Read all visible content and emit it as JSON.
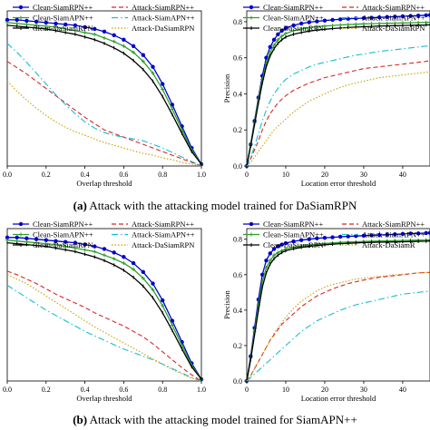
{
  "figure": {
    "captions": [
      {
        "tag": "(a)",
        "text": "Attack with the attacking model trained for DaSiamRPN"
      },
      {
        "tag": "(b)",
        "text": "Attack with the attacking model trained for SiamAPN++"
      }
    ]
  },
  "chart_data": [
    {
      "id": "a-success",
      "type": "line",
      "xlabel": "Overlap threshold",
      "ylabel": "",
      "xlim": [
        0,
        1
      ],
      "ylim": [
        0,
        0.86
      ],
      "xticks": [
        "0.0",
        "0.2",
        "0.4",
        "0.6",
        "0.8",
        "1.0"
      ],
      "yticks": [],
      "grid": false,
      "legend": {
        "placement": "top",
        "entries": [
          "Clean-SiamRPN++",
          "Attack-SiamRPN++",
          "Clean-SiamAPN++",
          "Attack-SiamAPN++",
          "Clean-DaSiamRPN",
          "Attack-DaSiamRPN"
        ]
      },
      "x": [
        0,
        0.05,
        0.1,
        0.15,
        0.2,
        0.25,
        0.3,
        0.35,
        0.4,
        0.45,
        0.5,
        0.55,
        0.6,
        0.65,
        0.7,
        0.75,
        0.8,
        0.85,
        0.9,
        0.95,
        1.0
      ],
      "series": [
        {
          "name": "Clean-SiamRPN++",
          "color": "#0000cc",
          "style": "solid-circle",
          "values": [
            0.81,
            0.81,
            0.805,
            0.8,
            0.795,
            0.79,
            0.785,
            0.78,
            0.77,
            0.76,
            0.745,
            0.725,
            0.7,
            0.665,
            0.615,
            0.55,
            0.455,
            0.34,
            0.22,
            0.1,
            0.01
          ]
        },
        {
          "name": "Attack-SiamRPN++",
          "color": "#d62728",
          "style": "dashed",
          "values": [
            0.58,
            0.545,
            0.51,
            0.47,
            0.43,
            0.39,
            0.35,
            0.31,
            0.27,
            0.235,
            0.2,
            0.18,
            0.16,
            0.14,
            0.12,
            0.1,
            0.08,
            0.06,
            0.04,
            0.02,
            0.0
          ]
        },
        {
          "name": "Clean-SiamAPN++",
          "color": "#2ca02c",
          "style": "solid-plus",
          "values": [
            0.795,
            0.79,
            0.785,
            0.78,
            0.775,
            0.77,
            0.76,
            0.75,
            0.74,
            0.73,
            0.71,
            0.69,
            0.665,
            0.63,
            0.58,
            0.515,
            0.425,
            0.315,
            0.2,
            0.09,
            0.01
          ]
        },
        {
          "name": "Attack-SiamAPN++",
          "color": "#17becf",
          "style": "dashdot",
          "values": [
            0.68,
            0.63,
            0.575,
            0.515,
            0.455,
            0.395,
            0.34,
            0.29,
            0.245,
            0.21,
            0.185,
            0.17,
            0.16,
            0.15,
            0.14,
            0.12,
            0.1,
            0.075,
            0.05,
            0.025,
            0.0
          ]
        },
        {
          "name": "Clean-DaSiamRPN",
          "color": "#000000",
          "style": "solid-tick",
          "values": [
            0.78,
            0.775,
            0.77,
            0.765,
            0.76,
            0.75,
            0.74,
            0.73,
            0.715,
            0.7,
            0.68,
            0.655,
            0.625,
            0.585,
            0.535,
            0.47,
            0.385,
            0.285,
            0.18,
            0.08,
            0.01
          ]
        },
        {
          "name": "Attack-DaSiamRPN",
          "color": "#c8a000",
          "style": "dotted",
          "values": [
            0.47,
            0.415,
            0.365,
            0.32,
            0.28,
            0.245,
            0.215,
            0.19,
            0.17,
            0.15,
            0.13,
            0.115,
            0.1,
            0.085,
            0.07,
            0.06,
            0.045,
            0.035,
            0.02,
            0.01,
            0.0
          ]
        }
      ]
    },
    {
      "id": "a-precision",
      "type": "line",
      "xlabel": "Location error threshold",
      "ylabel": "Precision",
      "xlim": [
        0,
        47
      ],
      "ylim": [
        0,
        0.86
      ],
      "xticks": [
        "0",
        "10",
        "20",
        "30",
        "40"
      ],
      "yticks": [
        "0.0",
        "0.2",
        "0.4",
        "0.6",
        "0.8"
      ],
      "grid": false,
      "legend": {
        "placement": "top",
        "entries": [
          "Clean-SiamRPN++",
          "Attack-SiamRPN++",
          "Clean-SiamAPN++",
          "Attack-SiamAPN++",
          "Clean-DaSiamRPN",
          "Attack-DaSiamRPN"
        ]
      },
      "x": [
        0,
        1,
        2,
        3,
        4,
        5,
        6,
        7,
        8,
        9,
        10,
        12,
        14,
        16,
        18,
        20,
        22,
        24,
        26,
        28,
        30,
        32,
        34,
        36,
        38,
        40,
        42,
        44,
        46,
        47
      ],
      "series": [
        {
          "name": "Clean-SiamRPN++",
          "color": "#0000cc",
          "style": "solid-circle",
          "values": [
            0.0,
            0.12,
            0.25,
            0.38,
            0.5,
            0.6,
            0.66,
            0.7,
            0.73,
            0.75,
            0.765,
            0.78,
            0.79,
            0.797,
            0.802,
            0.806,
            0.81,
            0.813,
            0.816,
            0.818,
            0.82,
            0.822,
            0.824,
            0.826,
            0.828,
            0.83,
            0.832,
            0.834,
            0.836,
            0.837
          ]
        },
        {
          "name": "Attack-SiamRPN++",
          "color": "#d62728",
          "style": "dashed",
          "values": [
            0.0,
            0.04,
            0.09,
            0.14,
            0.2,
            0.25,
            0.29,
            0.32,
            0.35,
            0.37,
            0.39,
            0.42,
            0.44,
            0.46,
            0.475,
            0.49,
            0.5,
            0.51,
            0.52,
            0.53,
            0.54,
            0.545,
            0.55,
            0.555,
            0.56,
            0.565,
            0.57,
            0.575,
            0.58,
            0.585
          ]
        },
        {
          "name": "Clean-SiamAPN++",
          "color": "#2ca02c",
          "style": "solid-plus",
          "values": [
            0.0,
            0.12,
            0.24,
            0.37,
            0.48,
            0.57,
            0.63,
            0.67,
            0.7,
            0.72,
            0.735,
            0.75,
            0.76,
            0.767,
            0.772,
            0.776,
            0.779,
            0.782,
            0.784,
            0.786,
            0.788,
            0.789,
            0.79,
            0.791,
            0.792,
            0.793,
            0.794,
            0.795,
            0.796,
            0.797
          ]
        },
        {
          "name": "Attack-SiamAPN++",
          "color": "#17becf",
          "style": "dashdot",
          "values": [
            0.0,
            0.05,
            0.11,
            0.18,
            0.25,
            0.31,
            0.36,
            0.4,
            0.43,
            0.46,
            0.48,
            0.51,
            0.53,
            0.55,
            0.565,
            0.575,
            0.585,
            0.595,
            0.605,
            0.615,
            0.62,
            0.628,
            0.635,
            0.64,
            0.645,
            0.65,
            0.655,
            0.66,
            0.665,
            0.668
          ]
        },
        {
          "name": "Clean-DaSiamRPN",
          "color": "#000000",
          "style": "solid-tick",
          "values": [
            0.0,
            0.11,
            0.23,
            0.35,
            0.46,
            0.55,
            0.61,
            0.65,
            0.68,
            0.7,
            0.715,
            0.73,
            0.74,
            0.748,
            0.754,
            0.758,
            0.762,
            0.765,
            0.768,
            0.77,
            0.772,
            0.774,
            0.776,
            0.777,
            0.778,
            0.779,
            0.78,
            0.781,
            0.782,
            0.783
          ]
        },
        {
          "name": "Attack-DaSiamRPN",
          "color": "#c8a000",
          "style": "dotted",
          "values": [
            0.0,
            0.02,
            0.05,
            0.08,
            0.11,
            0.14,
            0.17,
            0.2,
            0.22,
            0.24,
            0.26,
            0.3,
            0.33,
            0.36,
            0.38,
            0.4,
            0.42,
            0.435,
            0.45,
            0.46,
            0.47,
            0.48,
            0.49,
            0.495,
            0.5,
            0.505,
            0.51,
            0.515,
            0.52,
            0.522
          ]
        }
      ]
    },
    {
      "id": "b-success",
      "type": "line",
      "xlabel": "Overlap threshold",
      "ylabel": "",
      "xlim": [
        0,
        1
      ],
      "ylim": [
        0,
        0.86
      ],
      "xticks": [
        "0.0",
        "0.2",
        "0.4",
        "0.6",
        "0.8",
        "1.0"
      ],
      "yticks": [],
      "grid": false,
      "legend": {
        "placement": "top",
        "entries": [
          "Clean-SiamRPN++",
          "Attack-SiamRPN++",
          "Clean-SiamAPN++",
          "Attack-SiamAPN++",
          "Clean-DaSiamRPN",
          "Attack-DaSiamRPN"
        ]
      },
      "x": [
        0,
        0.05,
        0.1,
        0.15,
        0.2,
        0.25,
        0.3,
        0.35,
        0.4,
        0.45,
        0.5,
        0.55,
        0.6,
        0.65,
        0.7,
        0.75,
        0.8,
        0.85,
        0.9,
        0.95,
        1.0
      ],
      "series": [
        {
          "name": "Clean-SiamRPN++",
          "color": "#0000cc",
          "style": "solid-circle",
          "values": [
            0.81,
            0.81,
            0.805,
            0.8,
            0.795,
            0.79,
            0.785,
            0.78,
            0.77,
            0.76,
            0.745,
            0.725,
            0.7,
            0.665,
            0.615,
            0.55,
            0.455,
            0.34,
            0.22,
            0.1,
            0.01
          ]
        },
        {
          "name": "Attack-SiamRPN++",
          "color": "#d62728",
          "style": "dashed",
          "values": [
            0.62,
            0.6,
            0.575,
            0.55,
            0.52,
            0.49,
            0.465,
            0.44,
            0.415,
            0.385,
            0.36,
            0.335,
            0.31,
            0.28,
            0.25,
            0.21,
            0.165,
            0.12,
            0.075,
            0.035,
            0.0
          ]
        },
        {
          "name": "Clean-SiamAPN++",
          "color": "#2ca02c",
          "style": "solid-plus",
          "values": [
            0.795,
            0.79,
            0.785,
            0.78,
            0.775,
            0.77,
            0.76,
            0.75,
            0.74,
            0.73,
            0.71,
            0.69,
            0.665,
            0.63,
            0.58,
            0.515,
            0.425,
            0.315,
            0.2,
            0.09,
            0.01
          ]
        },
        {
          "name": "Attack-SiamAPN++",
          "color": "#17becf",
          "style": "dashdot",
          "values": [
            0.54,
            0.505,
            0.47,
            0.435,
            0.4,
            0.37,
            0.34,
            0.31,
            0.28,
            0.255,
            0.23,
            0.205,
            0.18,
            0.16,
            0.14,
            0.12,
            0.095,
            0.07,
            0.045,
            0.02,
            0.0
          ]
        },
        {
          "name": "Clean-DaSiamRPN",
          "color": "#000000",
          "style": "solid-tick",
          "values": [
            0.78,
            0.775,
            0.77,
            0.765,
            0.76,
            0.75,
            0.74,
            0.73,
            0.715,
            0.7,
            0.68,
            0.655,
            0.625,
            0.585,
            0.535,
            0.47,
            0.385,
            0.285,
            0.18,
            0.08,
            0.01
          ]
        },
        {
          "name": "Attack-DaSiamRPN",
          "color": "#c8a000",
          "style": "dotted",
          "values": [
            0.6,
            0.575,
            0.55,
            0.515,
            0.48,
            0.445,
            0.41,
            0.375,
            0.34,
            0.305,
            0.275,
            0.245,
            0.215,
            0.185,
            0.155,
            0.125,
            0.095,
            0.065,
            0.04,
            0.015,
            0.0
          ]
        }
      ]
    },
    {
      "id": "b-precision",
      "type": "line",
      "xlabel": "Location error threshold",
      "ylabel": "Precision",
      "xlim": [
        0,
        47
      ],
      "ylim": [
        0,
        0.86
      ],
      "xticks": [
        "0",
        "10",
        "20",
        "30",
        "40"
      ],
      "yticks": [
        "0.0",
        "0.2",
        "0.4",
        "0.6",
        "0.8"
      ],
      "grid": false,
      "legend": {
        "placement": "top",
        "entries": [
          "Clean-SiamRPN++",
          "Attack-SiamRPN++",
          "Clean-SiamAPN++",
          "Attack-SiamAPN++",
          "Clean-DaSiamRPN",
          "Attack-DaSiamR"
        ]
      },
      "x": [
        0,
        1,
        2,
        3,
        4,
        5,
        6,
        7,
        8,
        9,
        10,
        12,
        14,
        16,
        18,
        20,
        22,
        24,
        26,
        28,
        30,
        32,
        34,
        36,
        38,
        40,
        42,
        44,
        46,
        47
      ],
      "series": [
        {
          "name": "Clean-SiamRPN++",
          "color": "#0000cc",
          "style": "solid-circle",
          "values": [
            0.0,
            0.14,
            0.3,
            0.46,
            0.6,
            0.68,
            0.72,
            0.745,
            0.76,
            0.77,
            0.778,
            0.788,
            0.795,
            0.8,
            0.805,
            0.808,
            0.811,
            0.814,
            0.816,
            0.818,
            0.82,
            0.822,
            0.824,
            0.826,
            0.828,
            0.83,
            0.832,
            0.833,
            0.835,
            0.836
          ]
        },
        {
          "name": "Attack-SiamRPN++",
          "color": "#d62728",
          "style": "dashed",
          "values": [
            0.0,
            0.03,
            0.07,
            0.11,
            0.15,
            0.19,
            0.23,
            0.26,
            0.29,
            0.32,
            0.34,
            0.38,
            0.42,
            0.45,
            0.48,
            0.5,
            0.52,
            0.535,
            0.55,
            0.56,
            0.57,
            0.578,
            0.585,
            0.59,
            0.595,
            0.6,
            0.605,
            0.61,
            0.612,
            0.613
          ]
        },
        {
          "name": "Clean-SiamAPN++",
          "color": "#2ca02c",
          "style": "solid-plus",
          "values": [
            0.0,
            0.13,
            0.28,
            0.43,
            0.56,
            0.64,
            0.68,
            0.71,
            0.725,
            0.735,
            0.745,
            0.755,
            0.762,
            0.768,
            0.772,
            0.776,
            0.779,
            0.782,
            0.784,
            0.786,
            0.788,
            0.789,
            0.79,
            0.791,
            0.792,
            0.793,
            0.794,
            0.795,
            0.796,
            0.797
          ]
        },
        {
          "name": "Attack-SiamAPN++",
          "color": "#17becf",
          "style": "dashdot",
          "values": [
            0.0,
            0.02,
            0.04,
            0.06,
            0.08,
            0.1,
            0.12,
            0.14,
            0.16,
            0.18,
            0.2,
            0.24,
            0.28,
            0.31,
            0.34,
            0.36,
            0.38,
            0.4,
            0.415,
            0.43,
            0.44,
            0.45,
            0.46,
            0.47,
            0.48,
            0.49,
            0.495,
            0.5,
            0.505,
            0.507
          ]
        },
        {
          "name": "Clean-DaSiamRPN",
          "color": "#000000",
          "style": "solid-tick",
          "values": [
            0.0,
            0.12,
            0.26,
            0.4,
            0.53,
            0.61,
            0.66,
            0.69,
            0.71,
            0.725,
            0.735,
            0.746,
            0.754,
            0.76,
            0.765,
            0.769,
            0.772,
            0.775,
            0.777,
            0.779,
            0.781,
            0.782,
            0.783,
            0.784,
            0.785,
            0.786,
            0.787,
            0.788,
            0.789,
            0.79
          ]
        },
        {
          "name": "Attack-DaSiamR",
          "color": "#c8a000",
          "style": "dotted",
          "values": [
            0.0,
            0.03,
            0.07,
            0.11,
            0.15,
            0.19,
            0.23,
            0.27,
            0.3,
            0.33,
            0.36,
            0.41,
            0.45,
            0.48,
            0.51,
            0.53,
            0.545,
            0.555,
            0.565,
            0.575,
            0.58,
            0.585,
            0.59,
            0.595,
            0.6,
            0.603,
            0.606,
            0.609,
            0.612,
            0.613
          ]
        }
      ]
    }
  ]
}
